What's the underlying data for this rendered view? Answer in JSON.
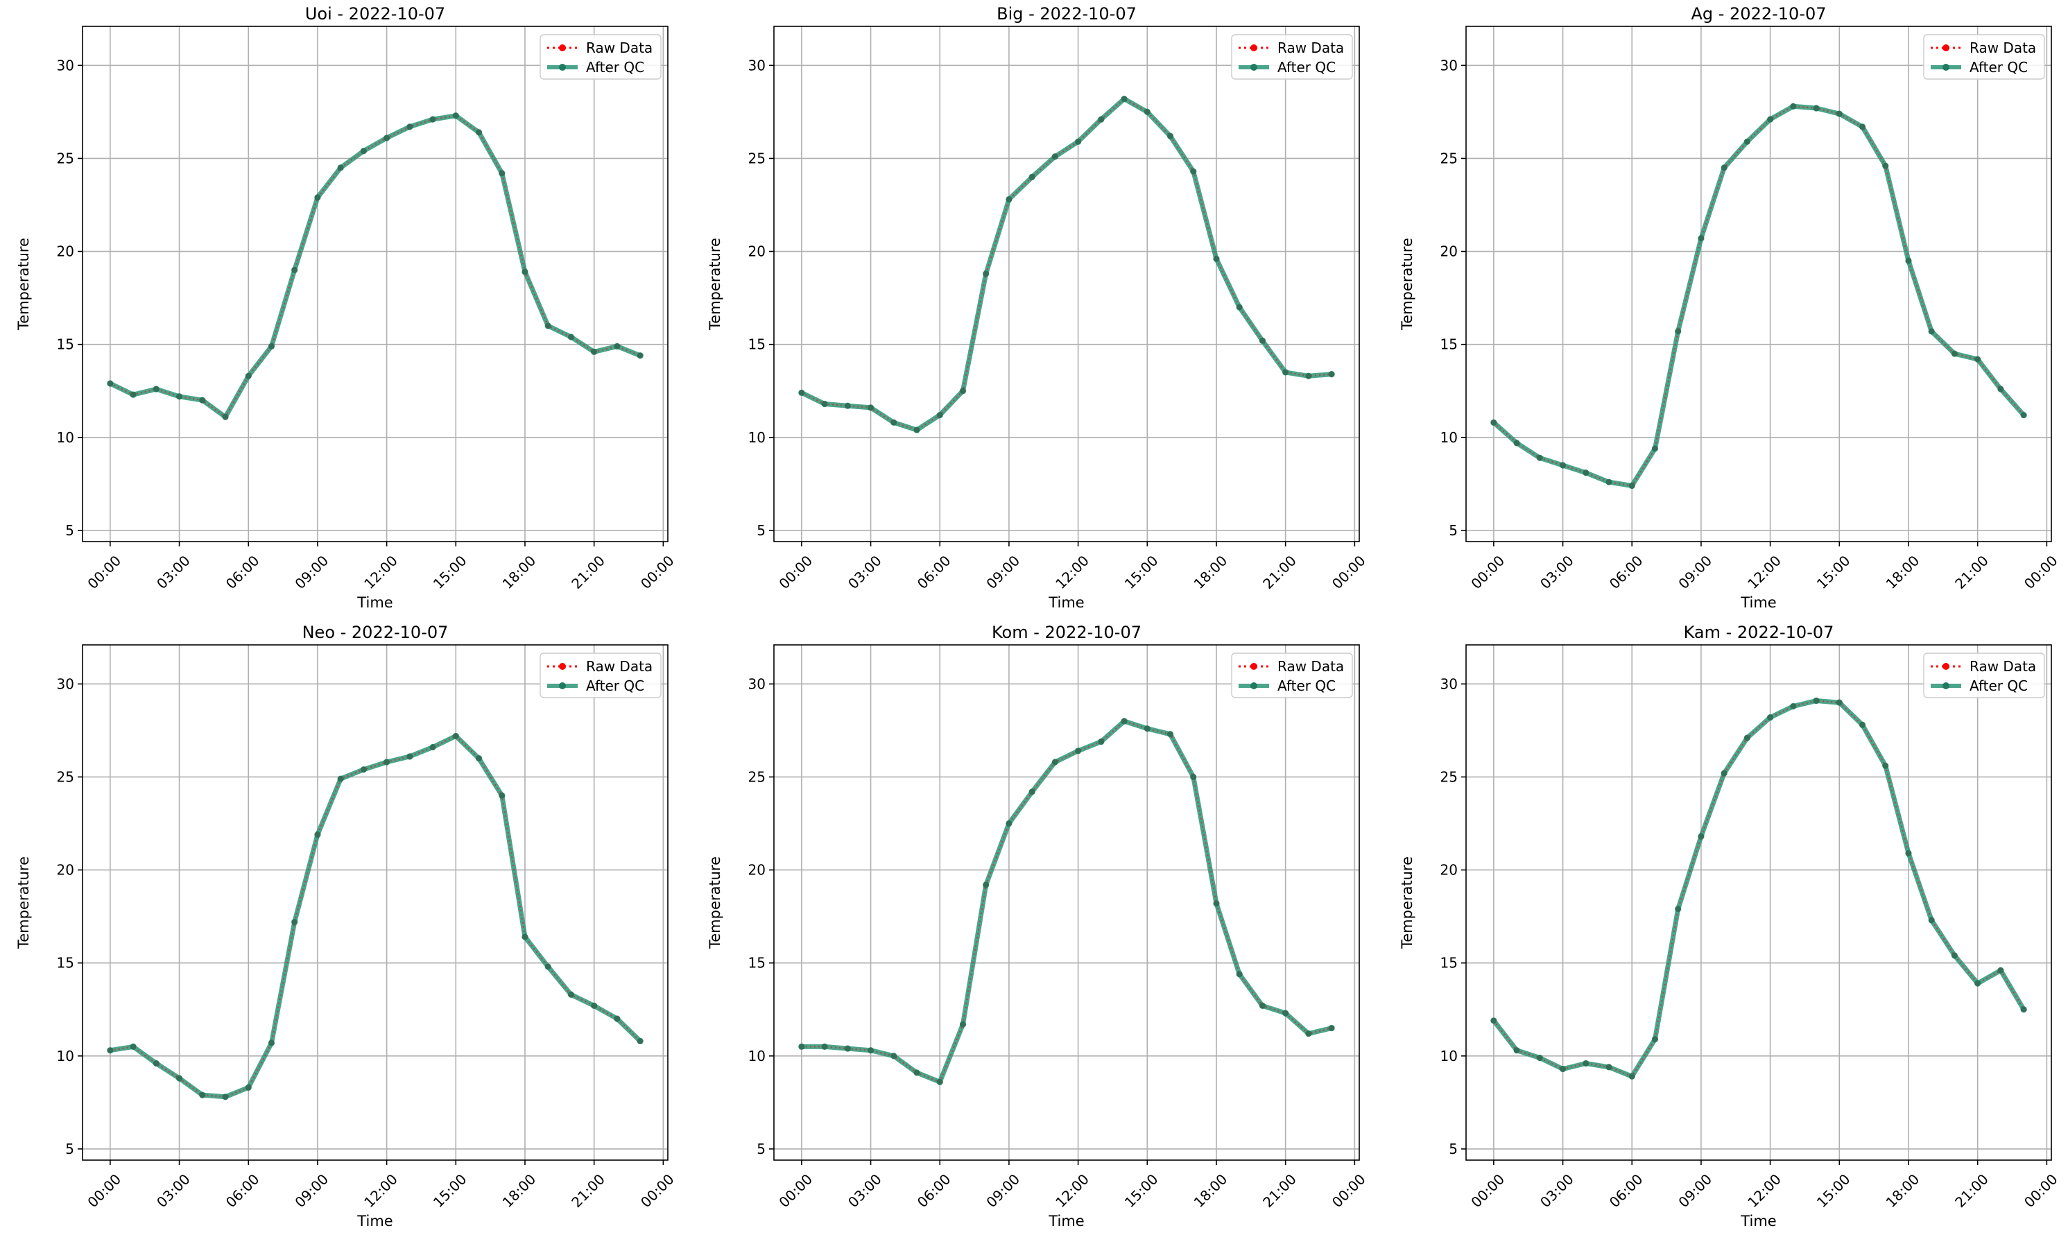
{
  "figure": {
    "colors": {
      "raw": "#ff0000",
      "qc": "#2a9577",
      "qc_marker": "#1f7a5f",
      "grid": "#b0b0b0",
      "axes": "#000000"
    }
  },
  "chart_data": [
    {
      "type": "line",
      "title": "Uoi - 2022-10-07",
      "xlabel": "Time",
      "ylabel": "Temperature",
      "x_ticks": [
        "00:00",
        "03:00",
        "06:00",
        "09:00",
        "12:00",
        "15:00",
        "18:00",
        "21:00",
        "00:00"
      ],
      "y_ticks": [
        5,
        10,
        15,
        20,
        25,
        30
      ],
      "xlim_hours": [
        -1.2,
        24.2
      ],
      "ylim": [
        4.4,
        32.1
      ],
      "grid": true,
      "legend": {
        "position": "top-right",
        "entries": [
          "Raw Data",
          "After QC"
        ]
      },
      "x_hours": [
        0,
        1,
        2,
        3,
        4,
        5,
        6,
        7,
        8,
        9,
        10,
        11,
        12,
        13,
        14,
        15,
        16,
        17,
        18,
        19,
        20,
        21,
        22,
        23
      ],
      "series": [
        {
          "name": "Raw Data",
          "style": "dotted",
          "values": [
            12.9,
            12.3,
            12.6,
            12.2,
            12.0,
            11.1,
            13.3,
            14.9,
            19.0,
            22.9,
            24.5,
            25.4,
            26.1,
            26.7,
            27.1,
            27.3,
            26.4,
            24.2,
            18.9,
            16.0,
            15.4,
            14.6,
            14.9,
            14.4
          ]
        },
        {
          "name": "After QC",
          "style": "solid",
          "values": [
            12.9,
            12.3,
            12.6,
            12.2,
            12.0,
            11.1,
            13.3,
            14.9,
            19.0,
            22.9,
            24.5,
            25.4,
            26.1,
            26.7,
            27.1,
            27.3,
            26.4,
            24.2,
            18.9,
            16.0,
            15.4,
            14.6,
            14.9,
            14.4
          ]
        }
      ]
    },
    {
      "type": "line",
      "title": "Big - 2022-10-07",
      "xlabel": "Time",
      "ylabel": "Temperature",
      "x_ticks": [
        "00:00",
        "03:00",
        "06:00",
        "09:00",
        "12:00",
        "15:00",
        "18:00",
        "21:00",
        "00:00"
      ],
      "y_ticks": [
        5,
        10,
        15,
        20,
        25,
        30
      ],
      "xlim_hours": [
        -1.2,
        24.2
      ],
      "ylim": [
        4.4,
        32.1
      ],
      "grid": true,
      "legend": {
        "position": "top-right",
        "entries": [
          "Raw Data",
          "After QC"
        ]
      },
      "x_hours": [
        0,
        1,
        2,
        3,
        4,
        5,
        6,
        7,
        8,
        9,
        10,
        11,
        12,
        13,
        14,
        15,
        16,
        17,
        18,
        19,
        20,
        21,
        22,
        23
      ],
      "series": [
        {
          "name": "Raw Data",
          "style": "dotted",
          "values": [
            12.4,
            11.8,
            11.7,
            11.6,
            10.8,
            10.4,
            11.2,
            12.5,
            18.8,
            22.8,
            24.0,
            25.1,
            25.9,
            27.1,
            28.2,
            27.5,
            26.2,
            24.3,
            19.6,
            17.0,
            15.2,
            13.5,
            13.3,
            13.4
          ]
        },
        {
          "name": "After QC",
          "style": "solid",
          "values": [
            12.4,
            11.8,
            11.7,
            11.6,
            10.8,
            10.4,
            11.2,
            12.5,
            18.8,
            22.8,
            24.0,
            25.1,
            25.9,
            27.1,
            28.2,
            27.5,
            26.2,
            24.3,
            19.6,
            17.0,
            15.2,
            13.5,
            13.3,
            13.4
          ]
        }
      ]
    },
    {
      "type": "line",
      "title": "Ag - 2022-10-07",
      "xlabel": "Time",
      "ylabel": "Temperature",
      "x_ticks": [
        "00:00",
        "03:00",
        "06:00",
        "09:00",
        "12:00",
        "15:00",
        "18:00",
        "21:00",
        "00:00"
      ],
      "y_ticks": [
        5,
        10,
        15,
        20,
        25,
        30
      ],
      "xlim_hours": [
        -1.2,
        24.2
      ],
      "ylim": [
        4.4,
        32.1
      ],
      "grid": true,
      "legend": {
        "position": "top-right",
        "entries": [
          "Raw Data",
          "After QC"
        ]
      },
      "x_hours": [
        0,
        1,
        2,
        3,
        4,
        5,
        6,
        7,
        8,
        9,
        10,
        11,
        12,
        13,
        14,
        15,
        16,
        17,
        18,
        19,
        20,
        21,
        22,
        23
      ],
      "series": [
        {
          "name": "Raw Data",
          "style": "dotted",
          "values": [
            10.8,
            9.7,
            8.9,
            8.5,
            8.1,
            7.6,
            7.4,
            9.4,
            15.7,
            20.7,
            24.5,
            25.9,
            27.1,
            27.8,
            27.7,
            27.4,
            26.7,
            24.6,
            19.5,
            15.7,
            14.5,
            14.2,
            12.6,
            11.2
          ]
        },
        {
          "name": "After QC",
          "style": "solid",
          "values": [
            10.8,
            9.7,
            8.9,
            8.5,
            8.1,
            7.6,
            7.4,
            9.4,
            15.7,
            20.7,
            24.5,
            25.9,
            27.1,
            27.8,
            27.7,
            27.4,
            26.7,
            24.6,
            19.5,
            15.7,
            14.5,
            14.2,
            12.6,
            11.2
          ]
        }
      ]
    },
    {
      "type": "line",
      "title": "Neo - 2022-10-07",
      "xlabel": "Time",
      "ylabel": "Temperature",
      "x_ticks": [
        "00:00",
        "03:00",
        "06:00",
        "09:00",
        "12:00",
        "15:00",
        "18:00",
        "21:00",
        "00:00"
      ],
      "y_ticks": [
        5,
        10,
        15,
        20,
        25,
        30
      ],
      "xlim_hours": [
        -1.2,
        24.2
      ],
      "ylim": [
        4.4,
        32.1
      ],
      "grid": true,
      "legend": {
        "position": "top-right",
        "entries": [
          "Raw Data",
          "After QC"
        ]
      },
      "x_hours": [
        0,
        1,
        2,
        3,
        4,
        5,
        6,
        7,
        8,
        9,
        10,
        11,
        12,
        13,
        14,
        15,
        16,
        17,
        18,
        19,
        20,
        21,
        22,
        23
      ],
      "series": [
        {
          "name": "Raw Data",
          "style": "dotted",
          "values": [
            10.3,
            10.5,
            9.6,
            8.8,
            7.9,
            7.8,
            8.3,
            10.7,
            17.2,
            21.9,
            24.9,
            25.4,
            25.8,
            26.1,
            26.6,
            27.2,
            26.0,
            24.0,
            16.4,
            14.8,
            13.3,
            12.7,
            12.0,
            10.8
          ]
        },
        {
          "name": "After QC",
          "style": "solid",
          "values": [
            10.3,
            10.5,
            9.6,
            8.8,
            7.9,
            7.8,
            8.3,
            10.7,
            17.2,
            21.9,
            24.9,
            25.4,
            25.8,
            26.1,
            26.6,
            27.2,
            26.0,
            24.0,
            16.4,
            14.8,
            13.3,
            12.7,
            12.0,
            10.8
          ]
        }
      ]
    },
    {
      "type": "line",
      "title": "Kom - 2022-10-07",
      "xlabel": "Time",
      "ylabel": "Temperature",
      "x_ticks": [
        "00:00",
        "03:00",
        "06:00",
        "09:00",
        "12:00",
        "15:00",
        "18:00",
        "21:00",
        "00:00"
      ],
      "y_ticks": [
        5,
        10,
        15,
        20,
        25,
        30
      ],
      "xlim_hours": [
        -1.2,
        24.2
      ],
      "ylim": [
        4.4,
        32.1
      ],
      "grid": true,
      "legend": {
        "position": "top-right",
        "entries": [
          "Raw Data",
          "After QC"
        ]
      },
      "x_hours": [
        0,
        1,
        2,
        3,
        4,
        5,
        6,
        7,
        8,
        9,
        10,
        11,
        12,
        13,
        14,
        15,
        16,
        17,
        18,
        19,
        20,
        21,
        22,
        23
      ],
      "series": [
        {
          "name": "Raw Data",
          "style": "dotted",
          "values": [
            10.5,
            10.5,
            10.4,
            10.3,
            10.0,
            9.1,
            8.6,
            11.7,
            19.2,
            22.5,
            24.2,
            25.8,
            26.4,
            26.9,
            28.0,
            27.6,
            27.3,
            25.0,
            18.2,
            14.4,
            12.7,
            12.3,
            11.2,
            11.5
          ]
        },
        {
          "name": "After QC",
          "style": "solid",
          "values": [
            10.5,
            10.5,
            10.4,
            10.3,
            10.0,
            9.1,
            8.6,
            11.7,
            19.2,
            22.5,
            24.2,
            25.8,
            26.4,
            26.9,
            28.0,
            27.6,
            27.3,
            25.0,
            18.2,
            14.4,
            12.7,
            12.3,
            11.2,
            11.5
          ]
        }
      ]
    },
    {
      "type": "line",
      "title": "Kam - 2022-10-07",
      "xlabel": "Time",
      "ylabel": "Temperature",
      "x_ticks": [
        "00:00",
        "03:00",
        "06:00",
        "09:00",
        "12:00",
        "15:00",
        "18:00",
        "21:00",
        "00:00"
      ],
      "y_ticks": [
        5,
        10,
        15,
        20,
        25,
        30
      ],
      "xlim_hours": [
        -1.2,
        24.2
      ],
      "ylim": [
        4.4,
        32.1
      ],
      "grid": true,
      "legend": {
        "position": "top-right",
        "entries": [
          "Raw Data",
          "After QC"
        ]
      },
      "x_hours": [
        0,
        1,
        2,
        3,
        4,
        5,
        6,
        7,
        8,
        9,
        10,
        11,
        12,
        13,
        14,
        15,
        16,
        17,
        18,
        19,
        20,
        21,
        22,
        23
      ],
      "series": [
        {
          "name": "Raw Data",
          "style": "dotted",
          "values": [
            11.9,
            10.3,
            9.9,
            9.3,
            9.6,
            9.4,
            8.9,
            10.9,
            17.9,
            21.8,
            25.2,
            27.1,
            28.2,
            28.8,
            29.1,
            29.0,
            27.8,
            25.6,
            20.9,
            17.3,
            15.4,
            13.9,
            14.6,
            12.5
          ]
        },
        {
          "name": "After QC",
          "style": "solid",
          "values": [
            11.9,
            10.3,
            9.9,
            9.3,
            9.6,
            9.4,
            8.9,
            10.9,
            17.9,
            21.8,
            25.2,
            27.1,
            28.2,
            28.8,
            29.1,
            29.0,
            27.8,
            25.6,
            20.9,
            17.3,
            15.4,
            13.9,
            14.6,
            12.5
          ]
        }
      ]
    }
  ]
}
